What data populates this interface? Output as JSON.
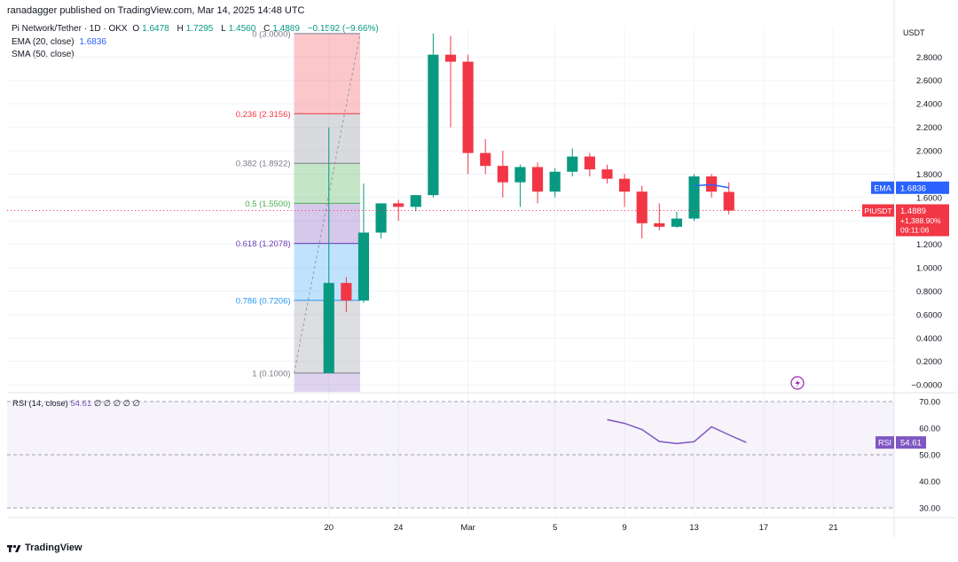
{
  "header": {
    "published_by": "ranadagger published on TradingView.com, Mar 14, 2025 14:48 UTC",
    "symbol": "Pi Network/Tether · 1D · OKX",
    "open_label": "O",
    "open": "1.6478",
    "high_label": "H",
    "high": "1.7295",
    "low_label": "L",
    "low": "1.4560",
    "close_label": "C",
    "close": "1.4889",
    "change": "−0.1592 (−9.66%)",
    "ema_label": "EMA (20, close)",
    "ema_value": "1.6836",
    "sma_label": "SMA (50, close)"
  },
  "rsi_legend": {
    "label": "RSI (14, close)",
    "value": "54.61",
    "tail": "∅ ∅ ∅ ∅ ∅"
  },
  "currency": "USDT",
  "footer": {
    "brand": "TradingView"
  },
  "colors": {
    "up": "#089981",
    "down": "#f23645",
    "ema": "#2962ff",
    "rsi": "#7e57c2",
    "text": "#131722"
  },
  "chart_data": {
    "type": "candlestick",
    "title": "Pi Network/Tether · 1D · OKX",
    "price_axis": {
      "ticks": [
        "2.8000",
        "2.6000",
        "2.4000",
        "2.2000",
        "2.0000",
        "1.8000",
        "1.6000",
        "1.4000",
        "1.2000",
        "1.0000",
        "0.8000",
        "0.6000",
        "0.4000",
        "0.2000",
        "−0.0000"
      ],
      "ylim": [
        -0.06,
        3.06
      ]
    },
    "x_axis": {
      "ticks": [
        {
          "label": "20",
          "day": 20
        },
        {
          "label": "24",
          "day": 24
        },
        {
          "label": "Mar",
          "day": 28
        },
        {
          "label": "5",
          "day": 33
        },
        {
          "label": "9",
          "day": 37
        },
        {
          "label": "13",
          "day": 41
        },
        {
          "label": "17",
          "day": 45
        },
        {
          "label": "21",
          "day": 49
        }
      ],
      "xlim": [
        1.5,
        52.5
      ]
    },
    "candles": [
      {
        "day": 20,
        "o": 0.1,
        "h": 2.2,
        "l": 0.1,
        "c": 0.87
      },
      {
        "day": 21,
        "o": 0.87,
        "h": 0.92,
        "l": 0.62,
        "c": 0.72
      },
      {
        "day": 22,
        "o": 0.72,
        "h": 1.72,
        "l": 0.7,
        "c": 1.3
      },
      {
        "day": 23,
        "o": 1.3,
        "h": 1.55,
        "l": 1.25,
        "c": 1.55
      },
      {
        "day": 24,
        "o": 1.55,
        "h": 1.58,
        "l": 1.4,
        "c": 1.52
      },
      {
        "day": 25,
        "o": 1.52,
        "h": 1.6,
        "l": 1.48,
        "c": 1.62
      },
      {
        "day": 26,
        "o": 1.62,
        "h": 3.0,
        "l": 1.6,
        "c": 2.82
      },
      {
        "day": 27,
        "o": 2.82,
        "h": 2.98,
        "l": 2.2,
        "c": 2.76
      },
      {
        "day": 28,
        "o": 2.76,
        "h": 2.82,
        "l": 1.8,
        "c": 1.98
      },
      {
        "day": 29,
        "o": 1.98,
        "h": 2.1,
        "l": 1.8,
        "c": 1.87
      },
      {
        "day": 30,
        "o": 1.87,
        "h": 2.0,
        "l": 1.6,
        "c": 1.73
      },
      {
        "day": 31,
        "o": 1.73,
        "h": 1.88,
        "l": 1.52,
        "c": 1.86
      },
      {
        "day": 32,
        "o": 1.86,
        "h": 1.9,
        "l": 1.55,
        "c": 1.65
      },
      {
        "day": 33,
        "o": 1.65,
        "h": 1.85,
        "l": 1.6,
        "c": 1.82
      },
      {
        "day": 34,
        "o": 1.82,
        "h": 2.02,
        "l": 1.78,
        "c": 1.95
      },
      {
        "day": 35,
        "o": 1.95,
        "h": 1.98,
        "l": 1.78,
        "c": 1.84
      },
      {
        "day": 36,
        "o": 1.84,
        "h": 1.88,
        "l": 1.72,
        "c": 1.76
      },
      {
        "day": 37,
        "o": 1.76,
        "h": 1.8,
        "l": 1.52,
        "c": 1.65
      },
      {
        "day": 38,
        "o": 1.65,
        "h": 1.7,
        "l": 1.25,
        "c": 1.38
      },
      {
        "day": 39,
        "o": 1.38,
        "h": 1.55,
        "l": 1.32,
        "c": 1.35
      },
      {
        "day": 40,
        "o": 1.35,
        "h": 1.48,
        "l": 1.34,
        "c": 1.42
      },
      {
        "day": 41,
        "o": 1.42,
        "h": 1.8,
        "l": 1.4,
        "c": 1.78
      },
      {
        "day": 42,
        "o": 1.78,
        "h": 1.8,
        "l": 1.6,
        "c": 1.65
      },
      {
        "day": 43,
        "o": 1.6478,
        "h": 1.7295,
        "l": 1.456,
        "c": 1.4889
      }
    ],
    "ema_segment": [
      {
        "day": 41,
        "v": 1.7
      },
      {
        "day": 42,
        "v": 1.71
      },
      {
        "day": 43,
        "v": 1.6836
      }
    ],
    "fib": {
      "from_day": 18,
      "to_day": 21.8,
      "from_value": 0.1,
      "to_value": 3.0,
      "levels": [
        {
          "ratio": "0",
          "price": "3.0000",
          "label": "0 (3.0000)",
          "v": 3.0,
          "color": "#787b86"
        },
        {
          "ratio": "0.236",
          "price": "2.3156",
          "label": "0.236 (2.3156)",
          "v": 2.3156,
          "color": "#f23645"
        },
        {
          "ratio": "0.382",
          "price": "1.8922",
          "label": "0.382 (1.8922)",
          "v": 1.8922,
          "color": "#787b86"
        },
        {
          "ratio": "0.5",
          "price": "1.5500",
          "label": "0.5 (1.5500)",
          "v": 1.55,
          "color": "#4caf50"
        },
        {
          "ratio": "0.618",
          "price": "1.2078",
          "label": "0.618 (1.2078)",
          "v": 1.2078,
          "color": "#673ab7"
        },
        {
          "ratio": "0.786",
          "price": "0.7206",
          "label": "0.786 (0.7206)",
          "v": 0.7206,
          "color": "#2196f3"
        },
        {
          "ratio": "1",
          "price": "0.1000",
          "label": "1 (0.1000)",
          "v": 0.1,
          "color": "#787b86"
        }
      ],
      "zones": [
        {
          "from": 3.0,
          "to": 2.3156,
          "color": "rgba(242,54,69,0.28)"
        },
        {
          "from": 2.3156,
          "to": 1.8922,
          "color": "rgba(120,123,134,0.28)"
        },
        {
          "from": 1.8922,
          "to": 1.55,
          "color": "rgba(76,175,80,0.32)"
        },
        {
          "from": 1.55,
          "to": 1.2078,
          "color": "rgba(103,58,183,0.28)"
        },
        {
          "from": 1.2078,
          "to": 0.7206,
          "color": "rgba(33,150,243,0.28)"
        },
        {
          "from": 0.7206,
          "to": 0.1,
          "color": "rgba(120,123,134,0.25)"
        },
        {
          "from": 0.1,
          "to": -0.06,
          "color": "rgba(103,58,183,0.22)"
        }
      ]
    },
    "last_price_badge": {
      "label": "PIUSDT",
      "price": "1.4889",
      "change": "+1,388.90%",
      "timer": "09:11:06"
    },
    "ema_badge": {
      "label": "EMA",
      "value": "1.6836"
    },
    "rsi": {
      "axis_ticks": [
        "70.00",
        "60.00",
        "50.00",
        "40.00",
        "30.00"
      ],
      "ylim": [
        27,
        73
      ],
      "bands": [
        70,
        50,
        30
      ],
      "points": [
        {
          "day": 36,
          "v": 63.2
        },
        {
          "day": 37,
          "v": 61.8
        },
        {
          "day": 38,
          "v": 59.5
        },
        {
          "day": 39,
          "v": 55.0
        },
        {
          "day": 40,
          "v": 54.2
        },
        {
          "day": 41,
          "v": 54.9
        },
        {
          "day": 42,
          "v": 60.5
        },
        {
          "day": 43,
          "v": 57.5
        },
        {
          "day": 44,
          "v": 54.61
        }
      ],
      "badge_label": "RSI",
      "badge_value": "54.61"
    }
  }
}
